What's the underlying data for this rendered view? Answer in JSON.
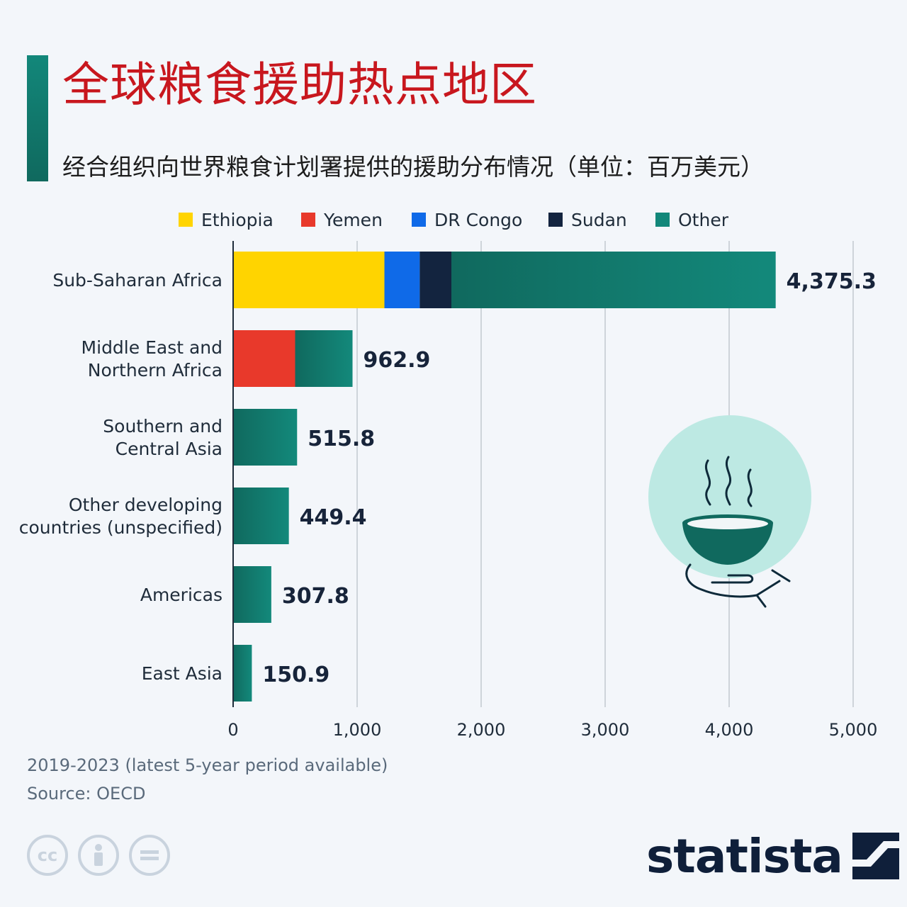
{
  "title": "全球粮食援助热点地区",
  "subtitle": "经合组织向世界粮食计划署提供的援助分布情况（单位：百万美元）",
  "legend": [
    {
      "label": "Ethiopia",
      "color": "#ffd400"
    },
    {
      "label": "Yemen",
      "color": "#e8392b"
    },
    {
      "label": "DR Congo",
      "color": "#0f6ae8"
    },
    {
      "label": "Sudan",
      "color": "#13243f"
    },
    {
      "label": "Other",
      "color": "#12877a"
    }
  ],
  "chart_data": {
    "type": "bar",
    "orientation": "horizontal",
    "stacked": true,
    "categories": [
      "Sub-Saharan Africa",
      "Middle East and\nNorthern Africa",
      "Southern and\nCentral Asia",
      "Other developing\ncountries (unspecified)",
      "Americas",
      "East Asia"
    ],
    "series": [
      {
        "name": "Ethiopia",
        "color": "#ffd400",
        "values": [
          1220,
          0,
          0,
          0,
          0,
          0
        ]
      },
      {
        "name": "Yemen",
        "color": "#e8392b",
        "values": [
          0,
          500,
          0,
          0,
          0,
          0
        ]
      },
      {
        "name": "DR Congo",
        "color": "#0f6ae8",
        "values": [
          285,
          0,
          0,
          0,
          0,
          0
        ]
      },
      {
        "name": "Sudan",
        "color": "#13243f",
        "values": [
          255,
          0,
          0,
          0,
          0,
          0
        ]
      },
      {
        "name": "Other",
        "color": "#12877a",
        "values": [
          2615.3,
          462.9,
          515.8,
          449.4,
          307.8,
          150.9
        ]
      }
    ],
    "totals": [
      4375.3,
      962.9,
      515.8,
      449.4,
      307.8,
      150.9
    ],
    "total_labels": [
      "4,375.3",
      "962.9",
      "515.8",
      "449.4",
      "307.8",
      "150.9"
    ],
    "xlim": [
      0,
      5000
    ],
    "xticks": [
      0,
      1000,
      2000,
      3000,
      4000,
      5000
    ],
    "xtick_labels": [
      "0",
      "1,000",
      "2,000",
      "3,000",
      "4,000",
      "5,000"
    ],
    "grid": true,
    "legend_position": "top"
  },
  "notes": {
    "period": "2019-2023 (latest 5-year period available)",
    "source": "Source: OECD"
  },
  "brand": "statista",
  "icons": [
    "cc-icon",
    "attribution-icon",
    "no-derivatives-icon",
    "food-aid-bowl-icon",
    "statista-logo-icon"
  ]
}
